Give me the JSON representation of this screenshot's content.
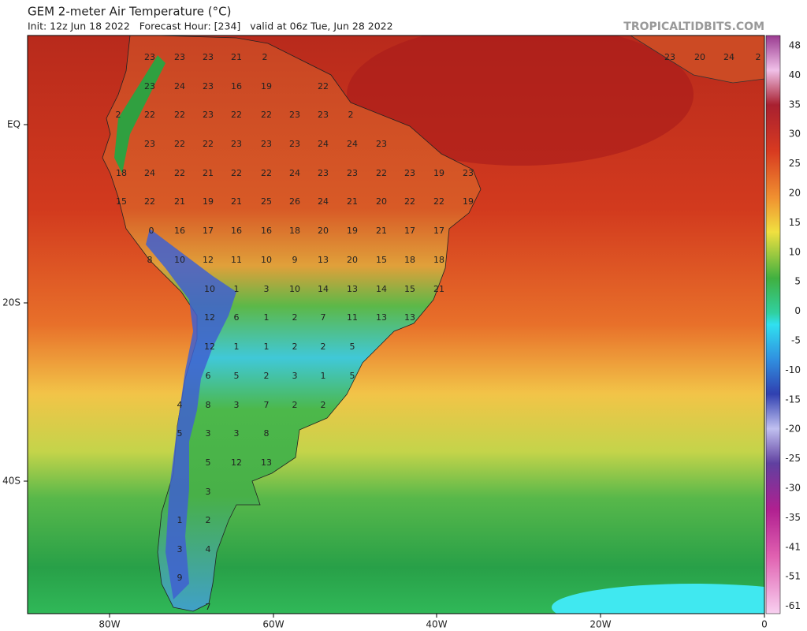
{
  "header": {
    "title": "GEM 2-meter Air Temperature (°C)",
    "subtitle": "Init: 12z Jun 18 2022   Forecast Hour: [234]   valid at 06z Tue, Jun 28 2022",
    "brand": "TROPICALTIDBITS.COM"
  },
  "latitude_labels": [
    "EQ",
    "20S",
    "40S"
  ],
  "longitude_labels": [
    "80W",
    "60W",
    "40W",
    "20W",
    "0"
  ],
  "colorbar_labels": [
    "48",
    "40",
    "35",
    "30",
    "25",
    "20",
    "15",
    "10",
    "5",
    "0",
    "-5",
    "-10",
    "-15",
    "-20",
    "-25",
    "-30",
    "-35",
    "-41",
    "-51",
    "-61"
  ],
  "temperature_labels": [
    [
      "23",
      "23",
      "23",
      "21",
      "2",
      "23",
      "20",
      "24",
      "2"
    ],
    [
      "23",
      "24",
      "23",
      "16",
      "19",
      "22"
    ],
    [
      "2",
      "22",
      "22",
      "23",
      "22",
      "22",
      "23",
      "23",
      "2"
    ],
    [
      "23",
      "22",
      "22",
      "23",
      "23",
      "23",
      "24",
      "24",
      "23"
    ],
    [
      "18",
      "24",
      "22",
      "21",
      "22",
      "22",
      "24",
      "23",
      "23",
      "22",
      "23",
      "19",
      "23"
    ],
    [
      "15",
      "22",
      "21",
      "19",
      "21",
      "25",
      "26",
      "24",
      "21",
      "20",
      "22",
      "22",
      "19"
    ],
    [
      "0",
      "16",
      "17",
      "16",
      "16",
      "18",
      "20",
      "19",
      "21",
      "17",
      "17"
    ],
    [
      "8",
      "10",
      "12",
      "11",
      "10",
      "9",
      "13",
      "20",
      "15",
      "18",
      "18"
    ],
    [
      "10",
      "1",
      "3",
      "10",
      "14",
      "13",
      "14",
      "15",
      "21"
    ],
    [
      "12",
      "6",
      "1",
      "2",
      "7",
      "11",
      "13",
      "13"
    ],
    [
      "12",
      "1",
      "1",
      "2",
      "2",
      "5"
    ],
    [
      "6",
      "5",
      "2",
      "3",
      "1",
      "5"
    ],
    [
      "4",
      "8",
      "3",
      "7",
      "2",
      "2"
    ],
    [
      "5",
      "3",
      "3",
      "8"
    ],
    [
      "5",
      "12",
      "13"
    ],
    [
      "3"
    ],
    [
      "1",
      "2"
    ],
    [
      "3",
      "4"
    ],
    [
      "9"
    ],
    [
      "7"
    ]
  ]
}
